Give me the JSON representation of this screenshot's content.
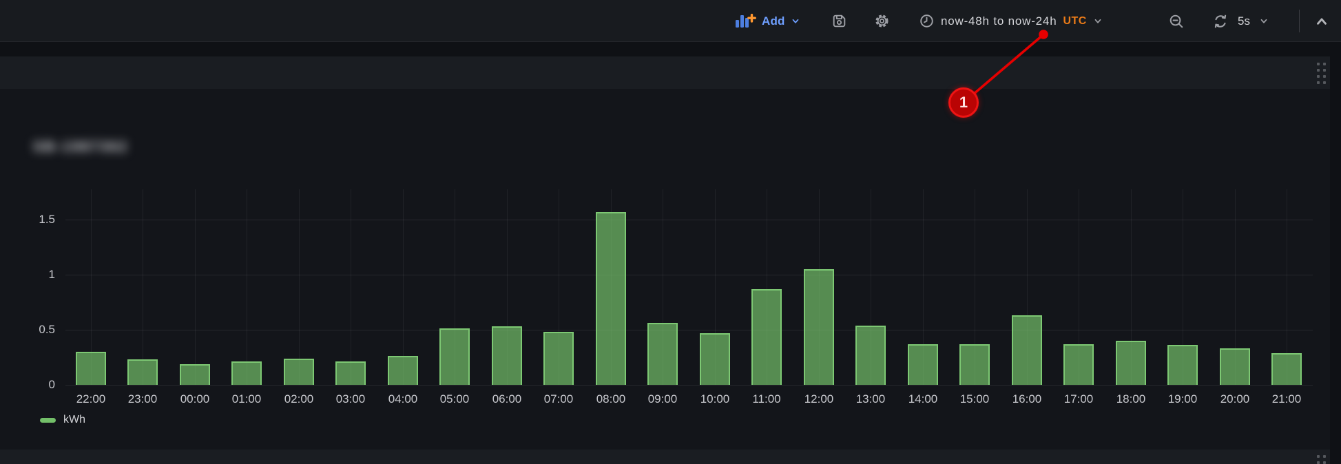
{
  "toolbar": {
    "add_label": "Add",
    "time_range": "now-48h to now-24h",
    "timezone": "UTC",
    "refresh_interval": "5s",
    "icons": [
      "bar-chart-add-icon",
      "save-icon",
      "settings-gear-icon",
      "clock-icon",
      "chevron-down-icon",
      "zoom-out-icon",
      "refresh-icon",
      "caret-up-icon"
    ]
  },
  "annotation": {
    "label": "1",
    "target": "time-range-picker",
    "color": "#e60000"
  },
  "panel": {
    "title_redacted": true,
    "title_placeholder": "SB-1987362"
  },
  "chart_data": {
    "type": "bar",
    "title": "",
    "xlabel": "",
    "ylabel": "",
    "series_name": "kWh",
    "legend_label": "kWh",
    "legend_position": "bottom-left",
    "grid": true,
    "categories": [
      "22:00",
      "23:00",
      "00:00",
      "01:00",
      "02:00",
      "03:00",
      "04:00",
      "05:00",
      "06:00",
      "07:00",
      "08:00",
      "09:00",
      "10:00",
      "11:00",
      "12:00",
      "13:00",
      "14:00",
      "15:00",
      "16:00",
      "17:00",
      "18:00",
      "19:00",
      "20:00",
      "21:00"
    ],
    "values": [
      0.3,
      0.23,
      0.19,
      0.21,
      0.24,
      0.21,
      0.26,
      0.51,
      0.53,
      0.48,
      1.57,
      0.56,
      0.47,
      0.87,
      1.05,
      0.54,
      0.37,
      0.37,
      0.63,
      0.37,
      0.4,
      0.36,
      0.33,
      0.29
    ],
    "yticks": [
      0,
      0.5,
      1,
      1.5
    ],
    "ylim": [
      0,
      1.78
    ],
    "bar_color": "#73bf69",
    "bar_border": "#7dc873",
    "bar_fill": "rgba(115,191,105,0.70)"
  },
  "colors": {
    "toolbar_bg": "#181b1f",
    "page_bg": "#0f1115",
    "panel_bg": "#13151a",
    "row_bg": "#1a1d22",
    "link_blue": "#6e9fff",
    "utc_orange": "#eb7b18",
    "annotation_red": "#e60000",
    "series_green": "#73bf69"
  }
}
